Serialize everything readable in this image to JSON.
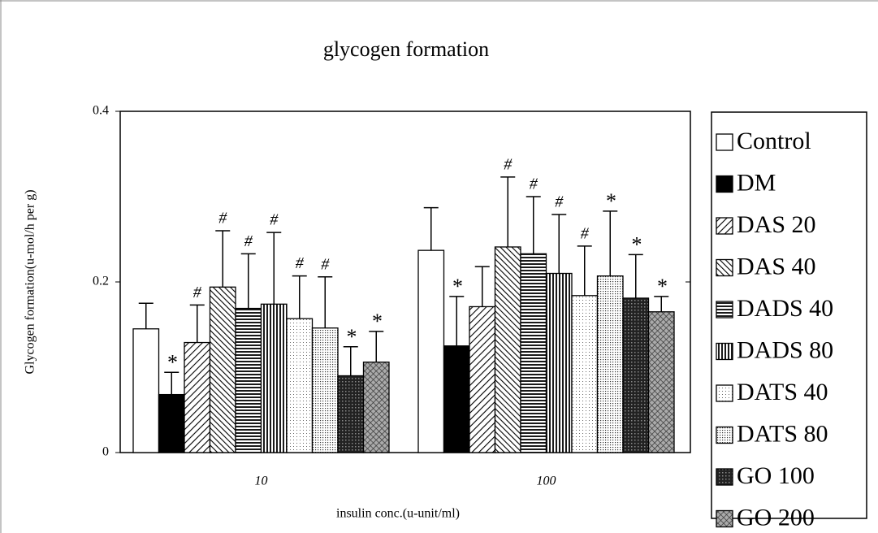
{
  "chart_data": {
    "type": "bar",
    "title": "glycogen formation",
    "xlabel": "insulin conc.(u-unit/ml)",
    "ylabel": "Glycogen formation(u-mol/h per g)",
    "categories": [
      "10",
      "100"
    ],
    "ylim": [
      0,
      0.4
    ],
    "yticks": [
      0,
      0.2,
      0.4
    ],
    "legend": "right",
    "series": [
      {
        "name": "Control",
        "color": "#ffffff",
        "pattern": "none",
        "values": [
          0.145,
          0.237
        ],
        "errors": [
          0.03,
          0.05
        ],
        "markers": [
          null,
          null
        ]
      },
      {
        "name": "DM",
        "color": "#000000",
        "pattern": "solid",
        "values": [
          0.068,
          0.125
        ],
        "errors": [
          0.026,
          0.058
        ],
        "markers": [
          "*",
          "*"
        ]
      },
      {
        "name": "DAS 20",
        "color": "#000000",
        "pattern": "diag-right",
        "values": [
          0.129,
          0.171
        ],
        "errors": [
          0.044,
          0.047
        ],
        "markers": [
          "#",
          null
        ]
      },
      {
        "name": "DAS 40",
        "color": "#000000",
        "pattern": "diag-left",
        "values": [
          0.194,
          0.241
        ],
        "errors": [
          0.066,
          0.082
        ],
        "markers": [
          "#",
          "#"
        ]
      },
      {
        "name": "DADS 40",
        "color": "#000000",
        "pattern": "horizontal",
        "values": [
          0.169,
          0.233
        ],
        "errors": [
          0.064,
          0.067
        ],
        "markers": [
          "#",
          "#"
        ]
      },
      {
        "name": "DADS 80",
        "color": "#000000",
        "pattern": "vertical",
        "values": [
          0.174,
          0.21
        ],
        "errors": [
          0.084,
          0.069
        ],
        "markers": [
          "#",
          "#"
        ]
      },
      {
        "name": "DATS 40",
        "color": "#000000",
        "pattern": "dots-light",
        "values": [
          0.157,
          0.184
        ],
        "errors": [
          0.05,
          0.058
        ],
        "markers": [
          "#",
          "#"
        ]
      },
      {
        "name": "DATS 80",
        "color": "#000000",
        "pattern": "dots",
        "values": [
          0.146,
          0.207
        ],
        "errors": [
          0.06,
          0.076
        ],
        "markers": [
          "#",
          "*"
        ]
      },
      {
        "name": "GO 100",
        "color": "#000000",
        "pattern": "grid-dark",
        "values": [
          0.09,
          0.181
        ],
        "errors": [
          0.034,
          0.051
        ],
        "markers": [
          "*",
          "*"
        ]
      },
      {
        "name": "GO 200",
        "color": "#000000",
        "pattern": "crosshatch",
        "values": [
          0.106,
          0.165
        ],
        "errors": [
          0.036,
          0.018
        ],
        "markers": [
          "*",
          "*"
        ]
      }
    ]
  }
}
